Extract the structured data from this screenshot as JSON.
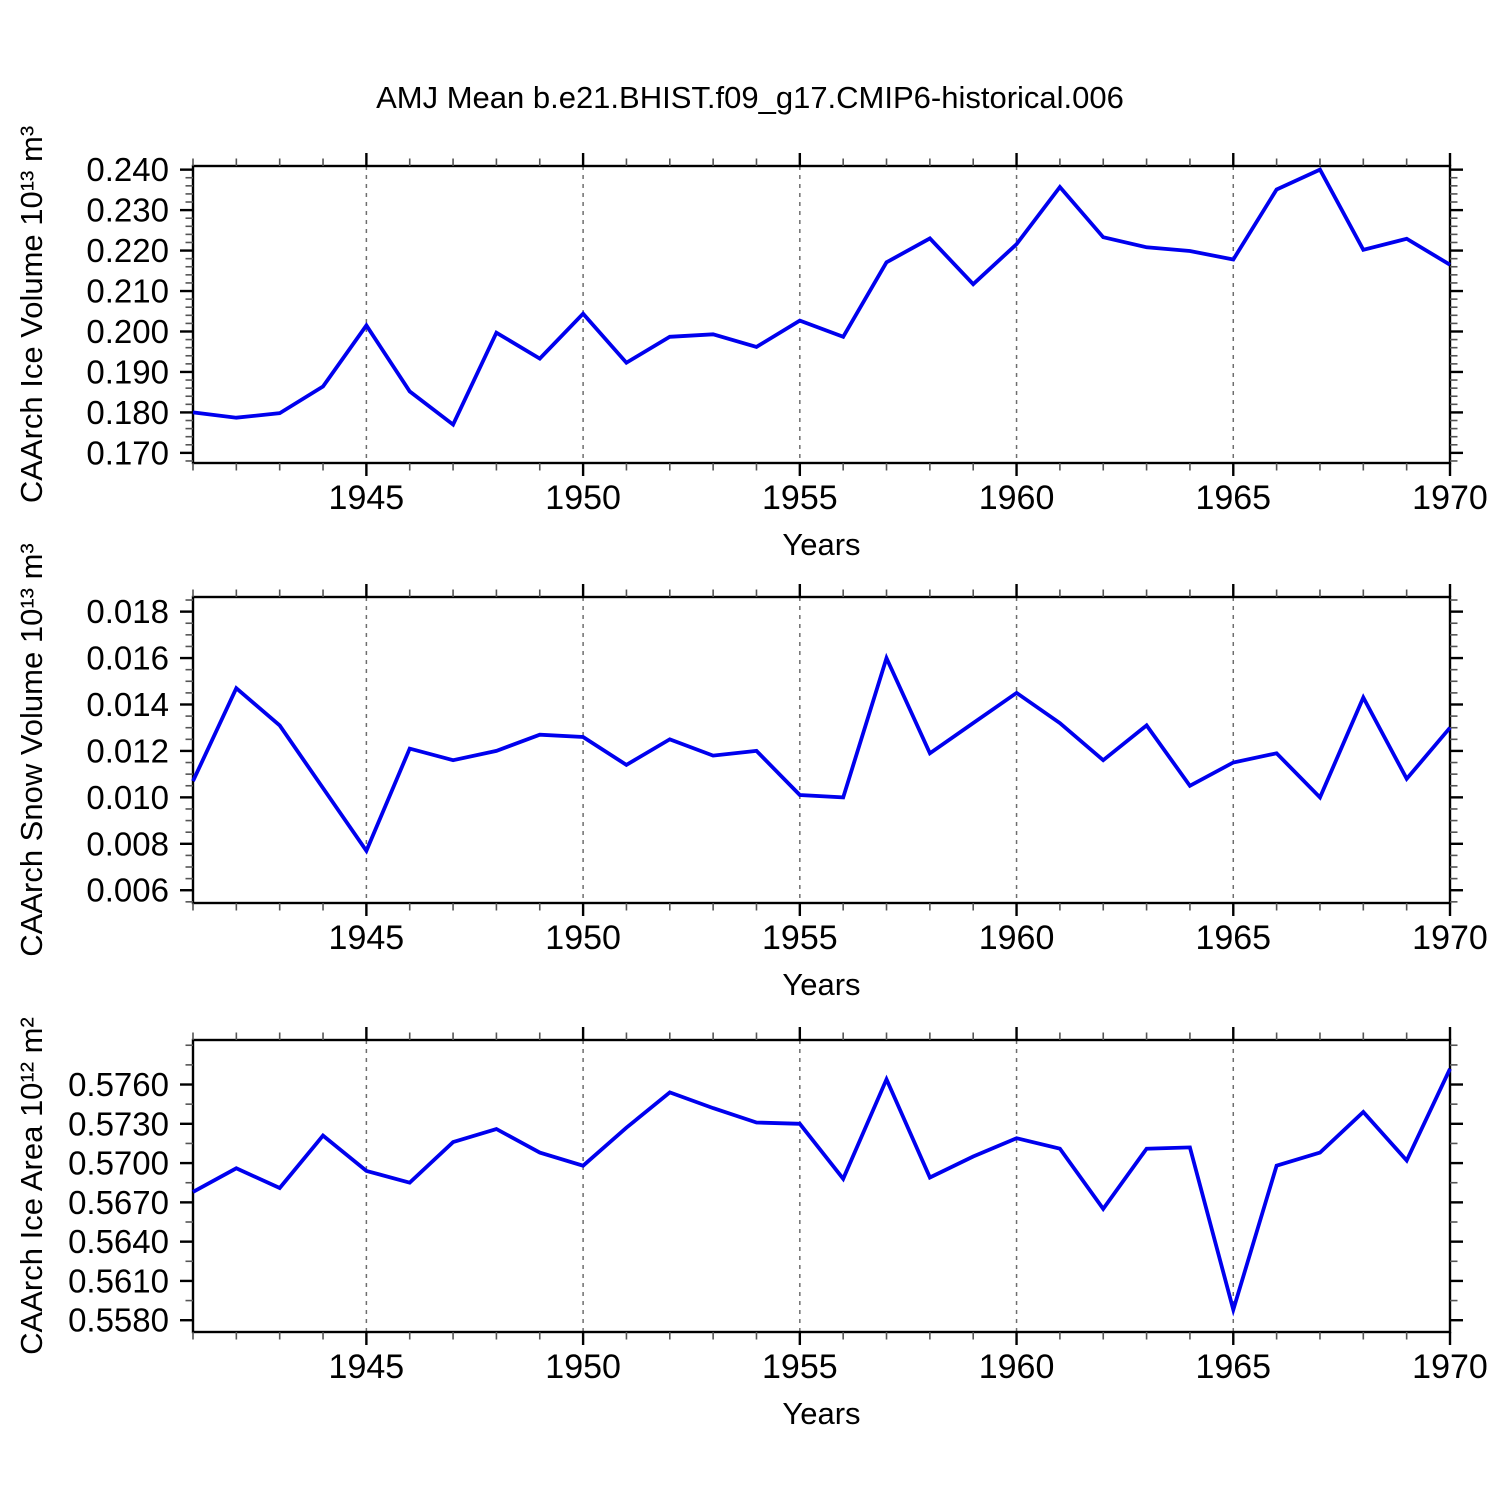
{
  "header": {
    "title": "AMJ Mean b.e21.BHIST.f09_g17.CMIP6-historical.006"
  },
  "colors": {
    "line": "#0000ee",
    "axis": "#000000",
    "major_tick": "#000000",
    "minor_tick": "#555555",
    "grid": "#6e6e6e",
    "background": "#ffffff",
    "text": "#000000"
  },
  "chart_data": [
    {
      "id": "caarch-ice-volume",
      "type": "line",
      "ylabel": "CAArch Ice Volume 10¹³ m³",
      "xlabel": "Years",
      "xlim": [
        1941,
        1970
      ],
      "ylim": [
        0.1675,
        0.2409
      ],
      "grid": "vertical-dashed",
      "xgrid": [
        1945,
        1950,
        1955,
        1960,
        1965
      ],
      "xticks_major": [
        1945,
        1950,
        1955,
        1960,
        1965,
        1970
      ],
      "ytick_minor_step": 0.002,
      "yticks": [
        {
          "v": 0.17,
          "label": "0.170"
        },
        {
          "v": 0.18,
          "label": "0.180"
        },
        {
          "v": 0.19,
          "label": "0.190"
        },
        {
          "v": 0.2,
          "label": "0.200"
        },
        {
          "v": 0.21,
          "label": "0.210"
        },
        {
          "v": 0.22,
          "label": "0.220"
        },
        {
          "v": 0.23,
          "label": "0.230"
        },
        {
          "v": 0.24,
          "label": "0.240"
        }
      ],
      "x": [
        1941,
        1942,
        1943,
        1944,
        1945,
        1946,
        1947,
        1948,
        1949,
        1950,
        1951,
        1952,
        1953,
        1954,
        1955,
        1956,
        1957,
        1958,
        1959,
        1960,
        1961,
        1962,
        1963,
        1964,
        1965,
        1966,
        1967,
        1968,
        1969,
        1970
      ],
      "values": [
        0.18,
        0.1787,
        0.1798,
        0.1864,
        0.2015,
        0.1852,
        0.177,
        0.1997,
        0.1933,
        0.2044,
        0.1923,
        0.1987,
        0.1993,
        0.1962,
        0.2027,
        0.1987,
        0.2171,
        0.223,
        0.2117,
        0.2216,
        0.2357,
        0.2233,
        0.2208,
        0.2199,
        0.2178,
        0.2351,
        0.24,
        0.2202,
        0.2229,
        0.2165
      ]
    },
    {
      "id": "caarch-snow-volume",
      "type": "line",
      "ylabel": "CAArch Snow Volume 10¹³ m³",
      "xlabel": "Years",
      "xlim": [
        1941,
        1970
      ],
      "ylim": [
        0.00545,
        0.01863
      ],
      "grid": "vertical-dashed",
      "xgrid": [
        1945,
        1950,
        1955,
        1960,
        1965
      ],
      "xticks_major": [
        1945,
        1950,
        1955,
        1960,
        1965,
        1970
      ],
      "ytick_minor_step": 0.0005,
      "yticks": [
        {
          "v": 0.006,
          "label": "0.006"
        },
        {
          "v": 0.008,
          "label": "0.008"
        },
        {
          "v": 0.01,
          "label": "0.010"
        },
        {
          "v": 0.012,
          "label": "0.012"
        },
        {
          "v": 0.014,
          "label": "0.014"
        },
        {
          "v": 0.016,
          "label": "0.016"
        },
        {
          "v": 0.018,
          "label": "0.018"
        }
      ],
      "x": [
        1941,
        1942,
        1943,
        1944,
        1945,
        1946,
        1947,
        1948,
        1949,
        1950,
        1951,
        1952,
        1953,
        1954,
        1955,
        1956,
        1957,
        1958,
        1959,
        1960,
        1961,
        1962,
        1963,
        1964,
        1965,
        1966,
        1967,
        1968,
        1969,
        1970
      ],
      "values": [
        0.0107,
        0.0147,
        0.0131,
        0.0104,
        0.0077,
        0.0121,
        0.0116,
        0.012,
        0.0127,
        0.0126,
        0.0114,
        0.0125,
        0.0118,
        0.012,
        0.0101,
        0.01,
        0.016,
        0.0119,
        0.0132,
        0.0145,
        0.0132,
        0.0116,
        0.0131,
        0.0105,
        0.0115,
        0.0119,
        0.01,
        0.0143,
        0.0108,
        0.013
      ]
    },
    {
      "id": "caarch-ice-area",
      "type": "line",
      "ylabel": "CAArch Ice Area 10¹² m²",
      "xlabel": "Years",
      "xlim": [
        1941,
        1970
      ],
      "ylim": [
        0.5571,
        0.5794
      ],
      "grid": "vertical-dashed",
      "xgrid": [
        1945,
        1950,
        1955,
        1960,
        1965
      ],
      "xticks_major": [
        1945,
        1950,
        1955,
        1960,
        1965,
        1970
      ],
      "ytick_minor_step": 0.0015,
      "yticks": [
        {
          "v": 0.558,
          "label": "0.5580"
        },
        {
          "v": 0.561,
          "label": "0.5610"
        },
        {
          "v": 0.564,
          "label": "0.5640"
        },
        {
          "v": 0.567,
          "label": "0.5670"
        },
        {
          "v": 0.57,
          "label": "0.5700"
        },
        {
          "v": 0.573,
          "label": "0.5730"
        },
        {
          "v": 0.576,
          "label": "0.5760"
        }
      ],
      "x": [
        1941,
        1942,
        1943,
        1944,
        1945,
        1946,
        1947,
        1948,
        1949,
        1950,
        1951,
        1952,
        1953,
        1954,
        1955,
        1956,
        1957,
        1958,
        1959,
        1960,
        1961,
        1962,
        1963,
        1964,
        1965,
        1966,
        1967,
        1968,
        1969,
        1970
      ],
      "values": [
        0.5678,
        0.5696,
        0.5681,
        0.5721,
        0.5694,
        0.5685,
        0.5716,
        0.5726,
        0.5708,
        0.5698,
        0.5727,
        0.5754,
        0.5742,
        0.5731,
        0.573,
        0.5688,
        0.5764,
        0.5689,
        0.5705,
        0.5719,
        0.5711,
        0.5665,
        0.5711,
        0.5712,
        0.5588,
        0.5698,
        0.5708,
        0.5739,
        0.5702,
        0.5772
      ]
    }
  ]
}
